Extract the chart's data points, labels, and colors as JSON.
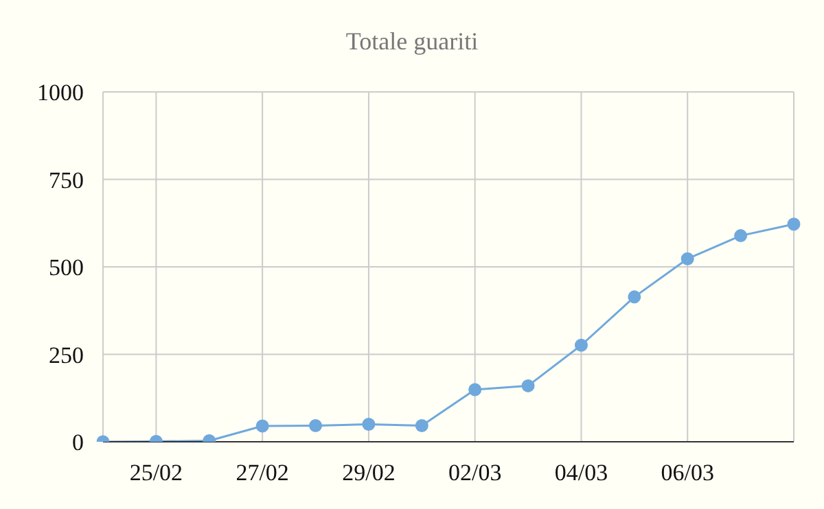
{
  "chart_data": {
    "type": "line",
    "title": "Totale guariti",
    "categories": [
      null,
      "25/02",
      null,
      "27/02",
      null,
      "29/02",
      null,
      "02/03",
      null,
      "04/03",
      null,
      "06/03",
      null,
      null
    ],
    "series": [
      {
        "color": "#6fa8dc",
        "values": [
          0,
          1,
          3,
          45,
          46,
          50,
          46,
          149,
          160,
          276,
          414,
          523,
          589,
          622
        ]
      }
    ],
    "ylim": [
      0,
      1000
    ],
    "yticks": [
      0,
      250,
      500,
      750,
      1000
    ],
    "grid": true,
    "marker": "circle"
  }
}
